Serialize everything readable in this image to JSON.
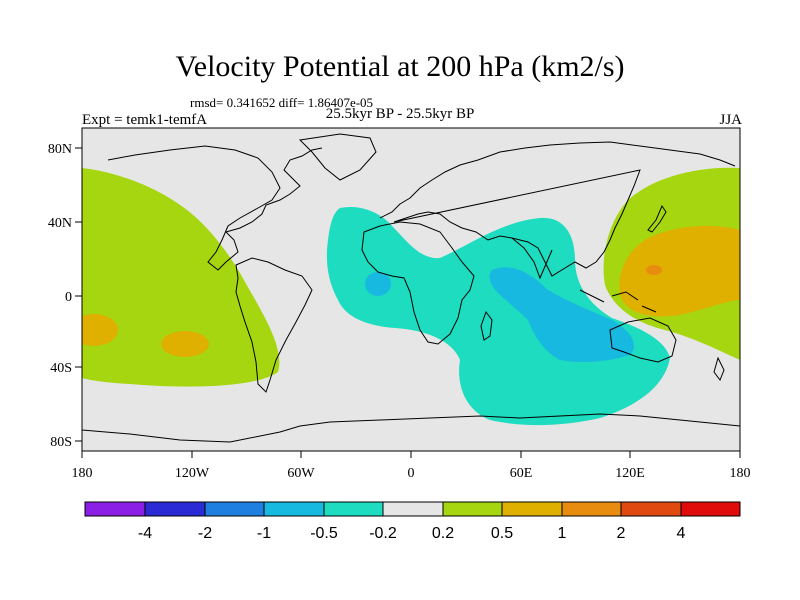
{
  "title": "Velocity Potential at 200 hPa (km2/s)",
  "stats": "rmsd= 0.341652 diff= 1.86407e-05",
  "subtitle": "25.5kyr BP - 25.5kyr BP",
  "experiment": "Expt = temk1-temfA",
  "season": "JJA",
  "axes": {
    "x_ticks": [
      "180",
      "120W",
      "60W",
      "0",
      "60E",
      "120E",
      "180"
    ],
    "y_ticks": [
      "80N",
      "40N",
      "0",
      "40S",
      "80S"
    ]
  },
  "colorbar": {
    "colors": [
      "#8b1fe6",
      "#2b2bd6",
      "#1e7fe0",
      "#18b9e0",
      "#1ddcbf",
      "#e6e6e6",
      "#a5d610",
      "#e0b000",
      "#e88c10",
      "#e04a10",
      "#e00c0c"
    ],
    "labels": [
      "-4",
      "-2",
      "-1",
      "-0.5",
      "-0.2",
      "0.2",
      "0.5",
      "1",
      "2",
      "4"
    ]
  },
  "chart_data": {
    "type": "contour-map",
    "title": "Velocity Potential at 200 hPa (km2/s)",
    "projection": "cylindrical equidistant",
    "lon_range": [
      -180,
      180
    ],
    "lat_range": [
      -90,
      90
    ],
    "levels": [
      -4,
      -2,
      -1,
      -0.5,
      -0.2,
      0.2,
      0.5,
      1,
      2,
      4
    ],
    "features": [
      {
        "name": "eastern Pacific positive",
        "range": "0.2 to 0.5",
        "local_max": "0.5 to 1"
      },
      {
        "name": "Indian Ocean negative",
        "range": "-0.2 to -0.5",
        "local_min": "-0.5 to -1"
      },
      {
        "name": "western Pacific positive",
        "range": "0.2 to 0.5",
        "local_max": "1 to 2"
      }
    ]
  }
}
